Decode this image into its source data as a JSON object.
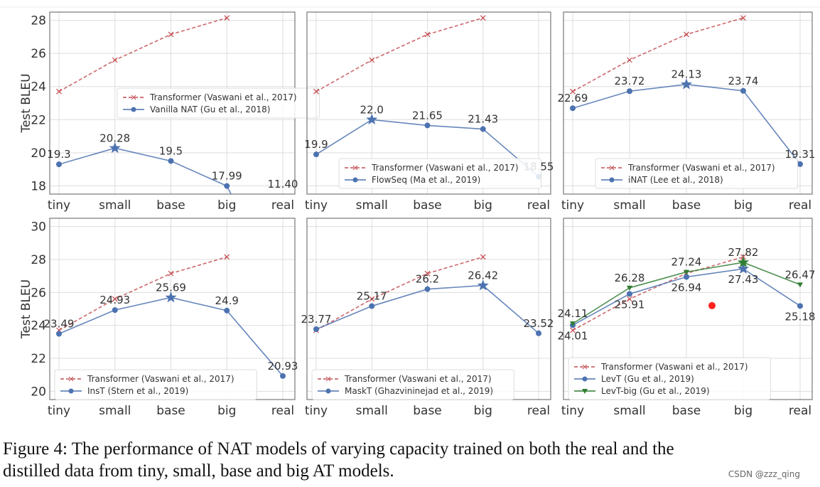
{
  "chart_data": [
    {
      "type": "line",
      "categories": [
        "tiny",
        "small",
        "base",
        "big",
        "real"
      ],
      "ylabel": "Test BLEU",
      "yticks": [
        18,
        20,
        22,
        24,
        26,
        28
      ],
      "ylim": [
        17.5,
        28.5
      ],
      "grid": true,
      "legend": "center-right",
      "series": [
        {
          "name": "Transformer (Vaswani et al., 2017)",
          "values": [
            23.7,
            25.6,
            27.15,
            28.15,
            null
          ],
          "color": "#c44e52",
          "style": "dashed",
          "marker": "x"
        },
        {
          "name": "Vanilla NAT (Gu et al., 2018)",
          "values": [
            19.3,
            20.28,
            19.5,
            17.99,
            11.4
          ],
          "labels": [
            "19.3",
            "20.28",
            "19.5",
            "17.99",
            "11.40"
          ],
          "color": "#4c72b0",
          "marker": "o",
          "star_index": 1
        }
      ]
    },
    {
      "type": "line",
      "categories": [
        "tiny",
        "small",
        "base",
        "big",
        "real"
      ],
      "ylabel": "",
      "yticks": [
        18,
        20,
        22,
        24,
        26,
        28
      ],
      "ylim": [
        17.5,
        28.5
      ],
      "grid": true,
      "legend": "lower-right",
      "series": [
        {
          "name": "Transformer (Vaswani et al., 2017)",
          "values": [
            23.7,
            25.6,
            27.15,
            28.15,
            null
          ],
          "color": "#c44e52",
          "style": "dashed",
          "marker": "x"
        },
        {
          "name": "FlowSeq (Ma et al., 2019)",
          "values": [
            19.9,
            22.0,
            21.65,
            21.43,
            18.55
          ],
          "labels": [
            "19.9",
            "22.0",
            "21.65",
            "21.43",
            "18.55"
          ],
          "color": "#4c72b0",
          "marker": "o",
          "star_index": 1
        }
      ]
    },
    {
      "type": "line",
      "categories": [
        "tiny",
        "small",
        "base",
        "big",
        "real"
      ],
      "ylabel": "",
      "yticks": [
        18,
        20,
        22,
        24,
        26,
        28
      ],
      "ylim": [
        17.5,
        28.5
      ],
      "grid": true,
      "legend": "lower-right",
      "series": [
        {
          "name": "Transformer (Vaswani et al., 2017)",
          "values": [
            23.7,
            25.6,
            27.15,
            28.15,
            null
          ],
          "color": "#c44e52",
          "style": "dashed",
          "marker": "x"
        },
        {
          "name": "iNAT (Lee et al., 2018)",
          "values": [
            22.69,
            23.72,
            24.13,
            23.74,
            19.31
          ],
          "labels": [
            "22.69",
            "23.72",
            "24.13",
            "23.74",
            "19.31"
          ],
          "color": "#4c72b0",
          "marker": "o",
          "star_index": 2
        }
      ]
    },
    {
      "type": "line",
      "categories": [
        "tiny",
        "small",
        "base",
        "big",
        "real"
      ],
      "ylabel": "Test BLEU",
      "yticks": [
        20,
        22,
        24,
        26,
        28,
        30
      ],
      "ylim": [
        19.5,
        30.5
      ],
      "grid": true,
      "legend": "lower-left",
      "series": [
        {
          "name": "Transformer (Vaswani et al., 2017)",
          "values": [
            23.7,
            25.6,
            27.15,
            28.15,
            null
          ],
          "color": "#c44e52",
          "style": "dashed",
          "marker": "x"
        },
        {
          "name": "InsT (Stern et al., 2019)",
          "values": [
            23.49,
            24.93,
            25.69,
            24.9,
            20.93
          ],
          "labels": [
            "23.49",
            "24.93",
            "25.69",
            "24.9",
            "20.93"
          ],
          "color": "#4c72b0",
          "marker": "o",
          "star_index": 2
        }
      ]
    },
    {
      "type": "line",
      "categories": [
        "tiny",
        "small",
        "base",
        "big",
        "real"
      ],
      "ylabel": "",
      "yticks": [
        20,
        22,
        24,
        26,
        28,
        30
      ],
      "ylim": [
        19.5,
        30.5
      ],
      "grid": true,
      "legend": "lower-left",
      "series": [
        {
          "name": "Transformer (Vaswani et al., 2017)",
          "values": [
            23.7,
            25.6,
            27.15,
            28.15,
            null
          ],
          "color": "#c44e52",
          "style": "dashed",
          "marker": "x"
        },
        {
          "name": "MaskT (Ghazvininejad et al., 2019)",
          "values": [
            23.77,
            25.17,
            26.2,
            26.42,
            23.52
          ],
          "labels": [
            "23.77",
            "25.17",
            "26.2",
            "26.42",
            "23.52"
          ],
          "color": "#4c72b0",
          "marker": "o",
          "star_index": 3
        }
      ]
    },
    {
      "type": "line",
      "categories": [
        "tiny",
        "small",
        "base",
        "big",
        "real"
      ],
      "ylabel": "",
      "yticks": [
        20,
        22,
        24,
        26,
        28,
        30
      ],
      "ylim": [
        19.5,
        30.5
      ],
      "grid": true,
      "legend": "lower-left",
      "series": [
        {
          "name": "Transformer (Vaswani et al., 2017)",
          "values": [
            23.7,
            25.6,
            27.15,
            28.15,
            null
          ],
          "color": "#c44e52",
          "style": "dashed",
          "marker": "x"
        },
        {
          "name": "LevT (Gu et al., 2019)",
          "values": [
            24.01,
            25.91,
            26.94,
            27.43,
            25.18
          ],
          "labels": [
            "24.01",
            "25.91",
            "26.94",
            "27.43",
            "25.18"
          ],
          "color": "#4c72b0",
          "marker": "o",
          "star_index": 3
        },
        {
          "name": "LevT-big (Gu et al., 2019)",
          "values": [
            24.11,
            26.28,
            27.24,
            27.82,
            26.47
          ],
          "labels": [
            "24.11",
            "26.28",
            "27.24",
            "27.82",
            "26.47"
          ],
          "color": "#2f7d32",
          "marker": "v",
          "star_index": 3
        }
      ],
      "annotation_dot": {
        "x": "between base and big",
        "y": 25.2,
        "color": "#ff2020"
      }
    }
  ],
  "caption": {
    "line1": "Figure 4:  The performance of NAT models of varying capacity trained on both the real and the",
    "line2": "distilled data from tiny, small, base and big AT models."
  },
  "watermark": "CSDN @zzz_qing"
}
